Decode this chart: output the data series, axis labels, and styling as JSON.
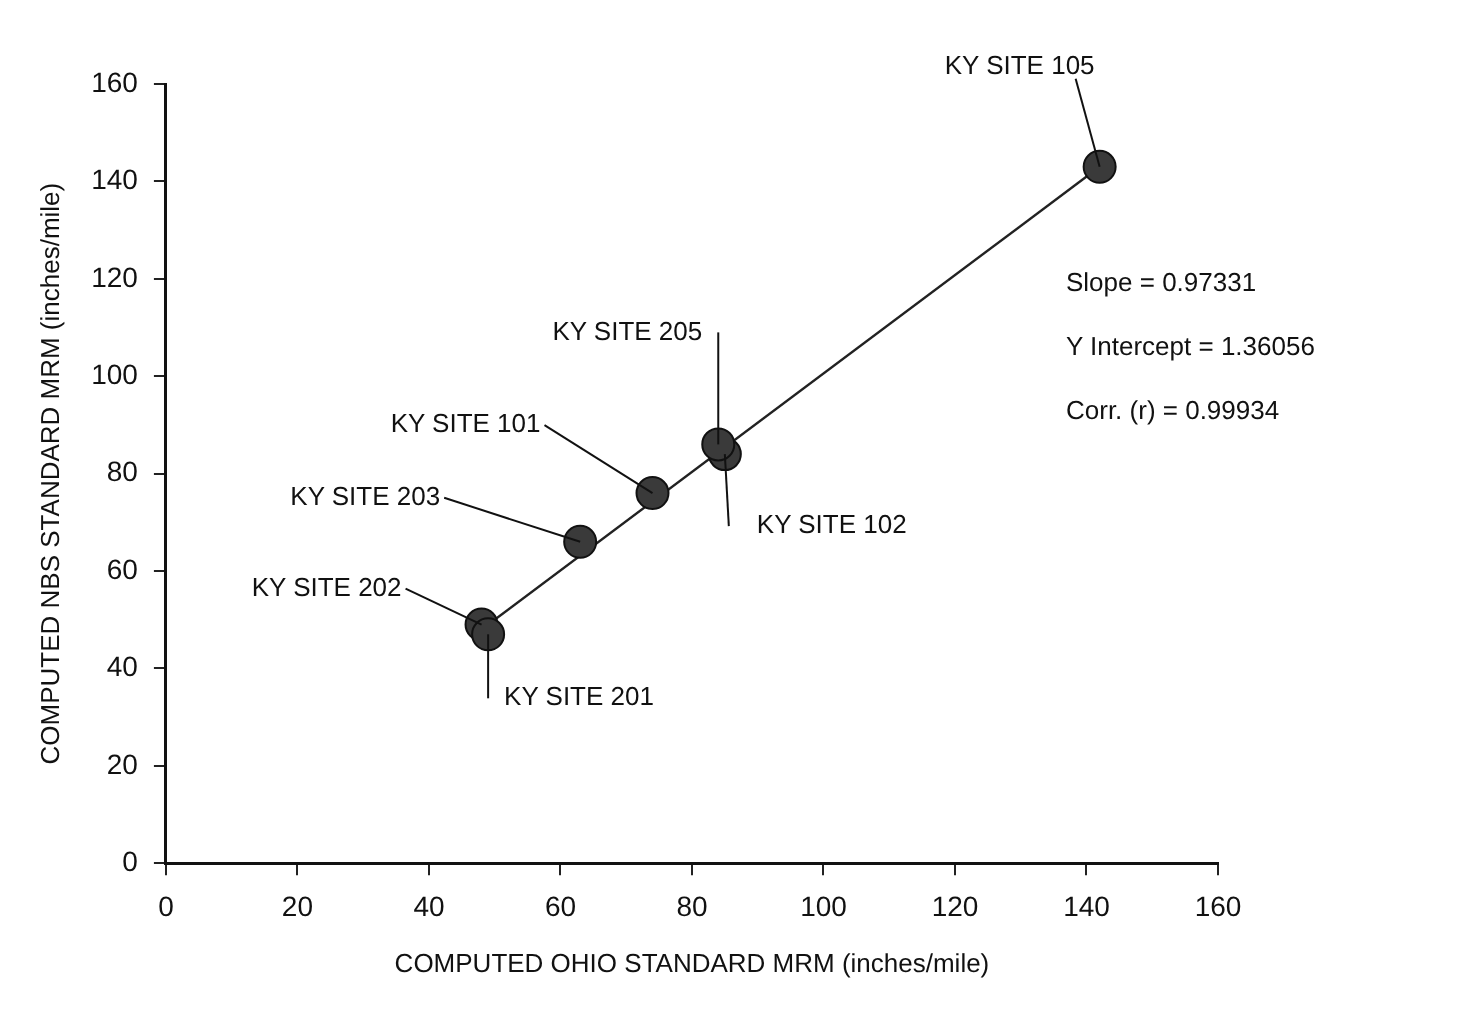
{
  "chart_data": {
    "type": "scatter",
    "xlabel": "COMPUTED OHIO STANDARD MRM (inches/mile)",
    "ylabel": "COMPUTED NBS STANDARD MRM (inches/mile)",
    "xlim": [
      0,
      160
    ],
    "ylim": [
      0,
      160
    ],
    "xticks": [
      0,
      20,
      40,
      60,
      80,
      100,
      120,
      140,
      160
    ],
    "yticks": [
      0,
      20,
      40,
      60,
      80,
      100,
      120,
      140,
      160
    ],
    "grid": false,
    "legend": false,
    "marker": "circle",
    "series": [
      {
        "color": "#3a3a3a",
        "x": [
          48,
          49,
          63,
          74,
          85,
          84,
          142
        ],
        "values": [
          49,
          47,
          66,
          76,
          84,
          86,
          143
        ]
      },
      {
        "type": "line",
        "marker": "none",
        "color": "#222222",
        "x": [
          48,
          142
        ],
        "values": [
          48,
          143
        ]
      }
    ],
    "annotations": [
      {
        "text": "KY SITE 202",
        "x": 48,
        "y": 49
      },
      {
        "text": "KY SITE 201",
        "x": 49,
        "y": 47
      },
      {
        "text": "KY SITE 203",
        "x": 63,
        "y": 66
      },
      {
        "text": "KY SITE 101",
        "x": 74,
        "y": 76
      },
      {
        "text": "KY SITE 102",
        "x": 85,
        "y": 84
      },
      {
        "text": "KY SITE 205",
        "x": 84,
        "y": 86
      },
      {
        "text": "KY SITE 105",
        "x": 142,
        "y": 143
      },
      "Slope = 0.97331",
      "Y Intercept = 1.36056",
      "Corr. (r) = 0.99934"
    ]
  }
}
